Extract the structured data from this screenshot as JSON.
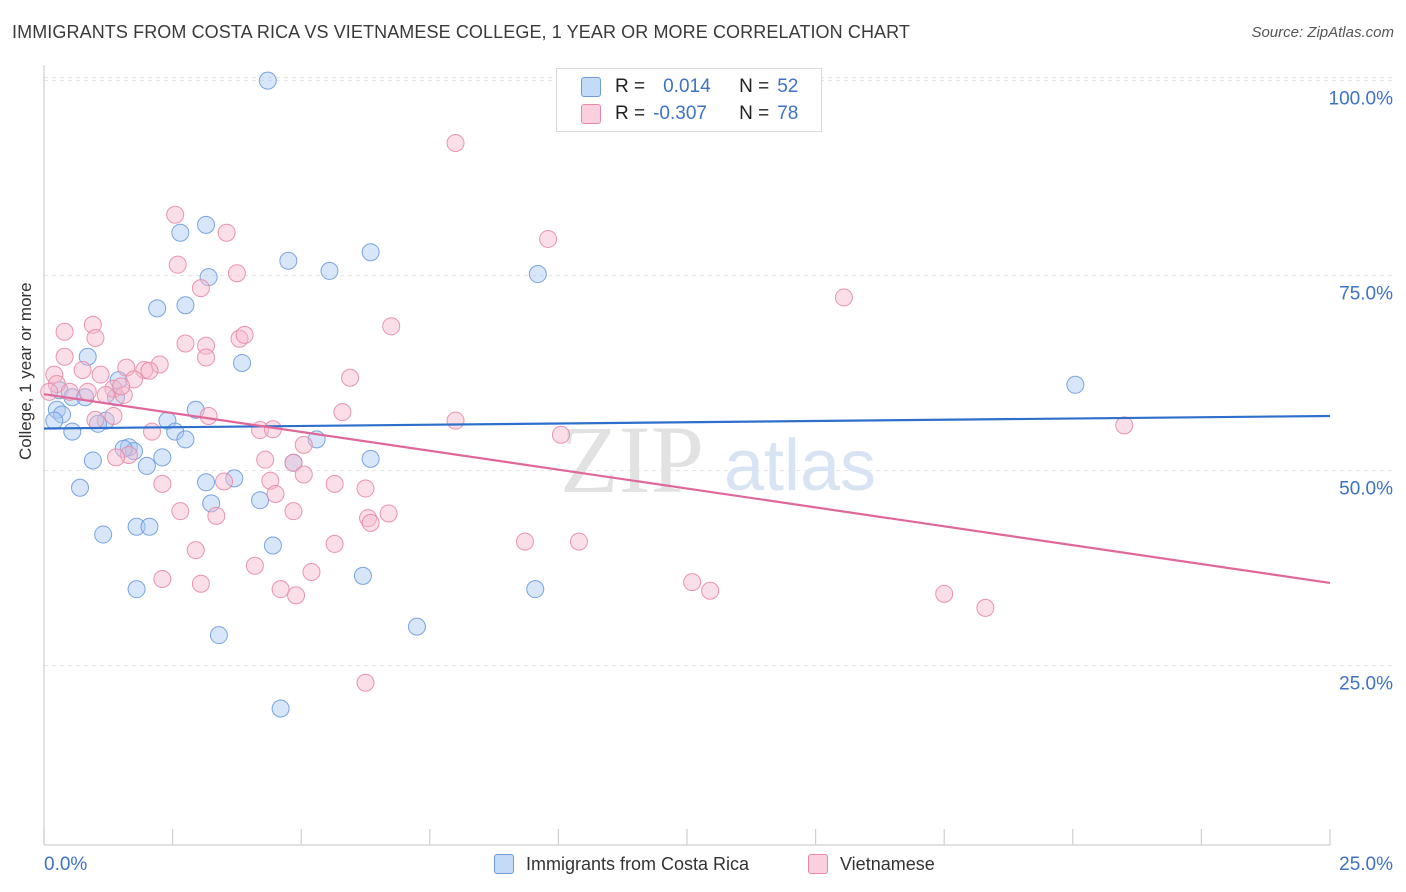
{
  "title": "IMMIGRANTS FROM COSTA RICA VS VIETNAMESE COLLEGE, 1 YEAR OR MORE CORRELATION CHART",
  "source": "Source: ZipAtlas.com",
  "watermark": {
    "zip": "ZIP",
    "atlas": "atlas"
  },
  "legend": {
    "r_label": "R =",
    "n_label": "N =",
    "rows": [
      {
        "r": "0.014",
        "n": "52",
        "color": "#a9c8f2",
        "border": "#6c9be0"
      },
      {
        "r": "-0.307",
        "n": "78",
        "color": "#f7b8cc",
        "border": "#e889a6"
      }
    ]
  },
  "bottom_legend": [
    "Immigrants from Costa Rica",
    "Vietnamese"
  ],
  "chart_data": {
    "type": "scatter",
    "title": "IMMIGRANTS FROM COSTA RICA VS VIETNAMESE COLLEGE, 1 YEAR OR MORE CORRELATION CHART",
    "xlabel": "",
    "ylabel": "College, 1 year or more",
    "xlim": [
      0,
      25
    ],
    "ylim": [
      2,
      102
    ],
    "x_tick_labels": [
      "0.0%",
      "25.0%"
    ],
    "y_ticks": [
      25,
      50,
      75,
      100
    ],
    "y_tick_labels": [
      "25.0%",
      "50.0%",
      "75.0%",
      "100.0%"
    ],
    "grid": true,
    "series": [
      {
        "name": "Immigrants from Costa Rica",
        "color": "#a9c8f2",
        "stroke": "#6c9be0",
        "line_color": "#2f6fcc",
        "trend": {
          "x0": 0,
          "y0": 55.4,
          "x1": 25,
          "y1": 57.0
        },
        "points": [
          [
            4.35,
            100.0
          ],
          [
            3.15,
            81.5
          ],
          [
            2.65,
            80.5
          ],
          [
            6.35,
            78.0
          ],
          [
            4.75,
            76.9
          ],
          [
            5.55,
            75.6
          ],
          [
            9.6,
            75.2
          ],
          [
            3.2,
            74.8
          ],
          [
            2.75,
            71.2
          ],
          [
            2.2,
            70.8
          ],
          [
            3.85,
            63.8
          ],
          [
            0.85,
            64.6
          ],
          [
            1.45,
            61.6
          ],
          [
            0.3,
            60.3
          ],
          [
            0.55,
            59.4
          ],
          [
            0.8,
            59.4
          ],
          [
            1.4,
            59.4
          ],
          [
            0.25,
            57.8
          ],
          [
            0.35,
            57.2
          ],
          [
            2.95,
            57.8
          ],
          [
            0.2,
            56.4
          ],
          [
            1.2,
            56.4
          ],
          [
            1.05,
            56.0
          ],
          [
            2.4,
            56.4
          ],
          [
            0.55,
            55.0
          ],
          [
            2.55,
            55.0
          ],
          [
            2.75,
            54.0
          ],
          [
            5.3,
            54.0
          ],
          [
            1.65,
            53.0
          ],
          [
            1.75,
            52.5
          ],
          [
            0.95,
            51.3
          ],
          [
            2.3,
            51.7
          ],
          [
            1.55,
            52.8
          ],
          [
            2.0,
            50.6
          ],
          [
            6.35,
            51.5
          ],
          [
            4.85,
            51.0
          ],
          [
            3.7,
            49.0
          ],
          [
            3.15,
            48.5
          ],
          [
            0.7,
            47.8
          ],
          [
            4.2,
            46.2
          ],
          [
            3.25,
            45.8
          ],
          [
            1.8,
            42.8
          ],
          [
            2.05,
            42.8
          ],
          [
            1.15,
            41.8
          ],
          [
            4.45,
            40.4
          ],
          [
            1.8,
            34.8
          ],
          [
            6.2,
            36.5
          ],
          [
            9.55,
            34.8
          ],
          [
            3.4,
            28.9
          ],
          [
            7.25,
            30.0
          ],
          [
            4.6,
            19.5
          ],
          [
            20.05,
            61.0
          ]
        ]
      },
      {
        "name": "Vietnamese",
        "color": "#f7b8cc",
        "stroke": "#e889a6",
        "line_color": "#e0679a",
        "trend": {
          "x0": 0,
          "y0": 59.8,
          "x1": 25,
          "y1": 35.6
        },
        "points": [
          [
            8.0,
            92.0
          ],
          [
            2.55,
            82.8
          ],
          [
            3.55,
            80.5
          ],
          [
            9.8,
            79.7
          ],
          [
            2.6,
            76.4
          ],
          [
            3.75,
            75.3
          ],
          [
            3.05,
            73.4
          ],
          [
            15.55,
            72.2
          ],
          [
            6.75,
            68.5
          ],
          [
            0.4,
            67.8
          ],
          [
            0.95,
            68.7
          ],
          [
            3.8,
            66.9
          ],
          [
            1.0,
            67.0
          ],
          [
            2.75,
            66.3
          ],
          [
            3.15,
            66.0
          ],
          [
            3.9,
            67.4
          ],
          [
            0.4,
            64.6
          ],
          [
            3.15,
            64.5
          ],
          [
            1.6,
            63.2
          ],
          [
            2.25,
            63.6
          ],
          [
            0.75,
            62.9
          ],
          [
            1.95,
            62.9
          ],
          [
            2.05,
            62.8
          ],
          [
            0.2,
            62.3
          ],
          [
            0.25,
            61.1
          ],
          [
            1.1,
            62.3
          ],
          [
            5.95,
            61.9
          ],
          [
            1.75,
            61.7
          ],
          [
            0.1,
            60.1
          ],
          [
            1.35,
            60.5
          ],
          [
            0.5,
            60.1
          ],
          [
            0.85,
            60.1
          ],
          [
            1.55,
            59.7
          ],
          [
            1.2,
            59.7
          ],
          [
            5.8,
            57.5
          ],
          [
            3.2,
            57.0
          ],
          [
            1.35,
            57.0
          ],
          [
            8.0,
            56.4
          ],
          [
            21.0,
            55.8
          ],
          [
            1.0,
            56.5
          ],
          [
            4.2,
            55.2
          ],
          [
            4.45,
            55.3
          ],
          [
            2.1,
            55.0
          ],
          [
            10.05,
            54.6
          ],
          [
            5.05,
            53.3
          ],
          [
            1.65,
            52.0
          ],
          [
            1.4,
            51.7
          ],
          [
            4.3,
            51.4
          ],
          [
            4.85,
            51.0
          ],
          [
            5.05,
            49.5
          ],
          [
            4.4,
            48.7
          ],
          [
            5.65,
            48.3
          ],
          [
            2.3,
            48.3
          ],
          [
            3.5,
            48.6
          ],
          [
            6.25,
            47.7
          ],
          [
            4.5,
            47.0
          ],
          [
            2.65,
            44.8
          ],
          [
            4.85,
            44.8
          ],
          [
            6.7,
            44.5
          ],
          [
            3.35,
            44.2
          ],
          [
            6.3,
            43.9
          ],
          [
            6.35,
            43.3
          ],
          [
            9.35,
            40.9
          ],
          [
            10.4,
            40.9
          ],
          [
            5.65,
            40.6
          ],
          [
            2.95,
            39.8
          ],
          [
            4.1,
            37.8
          ],
          [
            5.2,
            37.0
          ],
          [
            2.3,
            36.1
          ],
          [
            3.05,
            35.5
          ],
          [
            12.6,
            35.7
          ],
          [
            12.95,
            34.6
          ],
          [
            4.6,
            34.8
          ],
          [
            4.9,
            34.0
          ],
          [
            17.5,
            34.2
          ],
          [
            18.3,
            32.4
          ],
          [
            6.25,
            22.8
          ],
          [
            1.5,
            60.8
          ]
        ]
      }
    ]
  }
}
